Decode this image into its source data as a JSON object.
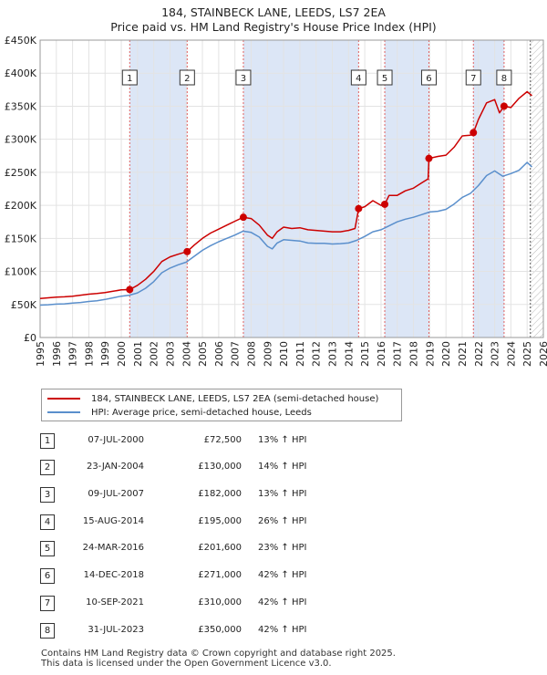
{
  "title_line1": "184, STAINBECK LANE, LEEDS, LS7 2EA",
  "title_line2": "Price paid vs. HM Land Registry's House Price Index (HPI)",
  "colors": {
    "property": "#cc0000",
    "hpi": "#5a8fcc",
    "shade": "#dce6f6",
    "marker_line": "#e06060"
  },
  "legend": {
    "property_label": "184, STAINBECK LANE, LEEDS, LS7 2EA (semi-detached house)",
    "hpi_label": "HPI: Average price, semi-detached house, Leeds"
  },
  "chart_data": {
    "type": "line",
    "title": "184, STAINBECK LANE, LEEDS, LS7 2EA — Price paid vs. HM Land Registry's House Price Index (HPI)",
    "xlim": [
      1995,
      2026
    ],
    "ylim": [
      0,
      450000
    ],
    "y_ticks": [
      0,
      50000,
      100000,
      150000,
      200000,
      250000,
      300000,
      350000,
      400000,
      450000
    ],
    "y_tick_labels": [
      "£0",
      "£50K",
      "£100K",
      "£150K",
      "£200K",
      "£250K",
      "£300K",
      "£350K",
      "£400K",
      "£450K"
    ],
    "x_ticks": [
      1995,
      1996,
      1997,
      1998,
      1999,
      2000,
      2001,
      2002,
      2003,
      2004,
      2005,
      2006,
      2007,
      2008,
      2009,
      2010,
      2011,
      2012,
      2013,
      2014,
      2015,
      2016,
      2017,
      2018,
      2019,
      2020,
      2021,
      2022,
      2023,
      2024,
      2025,
      2026
    ],
    "x_tick_labels": [
      "1995",
      "1996",
      "1997",
      "1998",
      "1999",
      "2000",
      "2001",
      "2002",
      "2003",
      "2004",
      "2005",
      "2006",
      "2007",
      "2008",
      "2009",
      "2010",
      "2011",
      "2012",
      "2013",
      "2014",
      "2015",
      "2016",
      "2017",
      "2018",
      "2019",
      "2020",
      "2021",
      "2022",
      "2023",
      "2024",
      "2025",
      "2026"
    ],
    "shaded_periods": [
      [
        2000.52,
        2004.06
      ],
      [
        2007.52,
        2014.62
      ],
      [
        2016.23,
        2018.95
      ],
      [
        2021.69,
        2023.58
      ]
    ],
    "future_from": 2025.2,
    "series": [
      {
        "name": "184, STAINBECK LANE, LEEDS, LS7 2EA (semi-detached house)",
        "x": [
          1995.0,
          1995.5,
          1996.0,
          1996.5,
          1997.0,
          1997.5,
          1998.0,
          1998.5,
          1999.0,
          1999.5,
          2000.0,
          2000.52,
          2001.0,
          2001.5,
          2002.0,
          2002.5,
          2003.0,
          2003.5,
          2004.06,
          2004.5,
          2005.0,
          2005.5,
          2006.0,
          2006.5,
          2007.0,
          2007.52,
          2008.0,
          2008.5,
          2009.0,
          2009.3,
          2009.6,
          2010.0,
          2010.5,
          2011.0,
          2011.5,
          2012.0,
          2012.5,
          2013.0,
          2013.5,
          2014.0,
          2014.4,
          2014.62,
          2015.0,
          2015.5,
          2016.0,
          2016.23,
          2016.5,
          2017.0,
          2017.5,
          2018.0,
          2018.5,
          2018.9,
          2018.95,
          2019.5,
          2020.0,
          2020.5,
          2021.0,
          2021.5,
          2021.69,
          2022.0,
          2022.5,
          2023.0,
          2023.3,
          2023.58,
          2024.0,
          2024.5,
          2025.0,
          2025.3
        ],
        "values": [
          59000,
          60000,
          61000,
          61500,
          62500,
          64000,
          65500,
          66500,
          68000,
          70000,
          72000,
          72500,
          79000,
          88000,
          100000,
          115000,
          122000,
          126000,
          130000,
          140000,
          150000,
          158000,
          164000,
          170000,
          176000,
          182000,
          180000,
          170000,
          155000,
          150000,
          160000,
          167000,
          165000,
          166000,
          163000,
          162000,
          161000,
          160000,
          160000,
          162000,
          165000,
          195000,
          198000,
          207000,
          200000,
          201600,
          215000,
          215000,
          222000,
          226000,
          234000,
          240000,
          271000,
          274000,
          276000,
          288000,
          305000,
          306000,
          310000,
          330000,
          355000,
          360000,
          340000,
          350000,
          348000,
          362000,
          372000,
          366000
        ]
      },
      {
        "name": "HPI: Average price, semi-detached house, Leeds",
        "x": [
          1995.0,
          1995.5,
          1996.0,
          1996.5,
          1997.0,
          1997.5,
          1998.0,
          1998.5,
          1999.0,
          1999.5,
          2000.0,
          2000.5,
          2001.0,
          2001.5,
          2002.0,
          2002.5,
          2003.0,
          2003.5,
          2004.0,
          2004.5,
          2005.0,
          2005.5,
          2006.0,
          2006.5,
          2007.0,
          2007.5,
          2008.0,
          2008.5,
          2009.0,
          2009.3,
          2009.6,
          2010.0,
          2010.5,
          2011.0,
          2011.5,
          2012.0,
          2012.5,
          2013.0,
          2013.5,
          2014.0,
          2014.5,
          2015.0,
          2015.5,
          2016.0,
          2016.5,
          2017.0,
          2017.5,
          2018.0,
          2018.5,
          2019.0,
          2019.5,
          2020.0,
          2020.5,
          2021.0,
          2021.5,
          2022.0,
          2022.5,
          2023.0,
          2023.5,
          2024.0,
          2024.5,
          2025.0,
          2025.3
        ],
        "values": [
          49000,
          49500,
          50500,
          51000,
          52000,
          53000,
          54500,
          55500,
          57500,
          60000,
          62500,
          64000,
          67500,
          74500,
          84500,
          98000,
          105000,
          110000,
          114000,
          123000,
          132000,
          139000,
          145000,
          150000,
          155000,
          161000,
          159000,
          152000,
          138000,
          134000,
          143000,
          148000,
          147000,
          146000,
          143000,
          142500,
          142500,
          141500,
          142000,
          143000,
          147000,
          153000,
          160000,
          163000,
          169000,
          175000,
          179000,
          182000,
          186000,
          190000,
          191000,
          194000,
          202000,
          212000,
          218000,
          230000,
          245000,
          252000,
          244000,
          248000,
          253000,
          265000,
          258000
        ]
      }
    ],
    "sale_markers": [
      {
        "label": "1",
        "x": 2000.52,
        "value": 72500
      },
      {
        "label": "2",
        "x": 2004.06,
        "value": 130000
      },
      {
        "label": "3",
        "x": 2007.52,
        "value": 182000
      },
      {
        "label": "4",
        "x": 2014.62,
        "value": 195000
      },
      {
        "label": "5",
        "x": 2016.23,
        "value": 201600
      },
      {
        "label": "6",
        "x": 2018.95,
        "value": 271000
      },
      {
        "label": "7",
        "x": 2021.69,
        "value": 310000
      },
      {
        "label": "8",
        "x": 2023.58,
        "value": 350000
      }
    ]
  },
  "sales": [
    {
      "num": "1",
      "date": "07-JUL-2000",
      "price": "£72,500",
      "hpi": "13% ↑ HPI"
    },
    {
      "num": "2",
      "date": "23-JAN-2004",
      "price": "£130,000",
      "hpi": "14% ↑ HPI"
    },
    {
      "num": "3",
      "date": "09-JUL-2007",
      "price": "£182,000",
      "hpi": "13% ↑ HPI"
    },
    {
      "num": "4",
      "date": "15-AUG-2014",
      "price": "£195,000",
      "hpi": "26% ↑ HPI"
    },
    {
      "num": "5",
      "date": "24-MAR-2016",
      "price": "£201,600",
      "hpi": "23% ↑ HPI"
    },
    {
      "num": "6",
      "date": "14-DEC-2018",
      "price": "£271,000",
      "hpi": "42% ↑ HPI"
    },
    {
      "num": "7",
      "date": "10-SEP-2021",
      "price": "£310,000",
      "hpi": "42% ↑ HPI"
    },
    {
      "num": "8",
      "date": "31-JUL-2023",
      "price": "£350,000",
      "hpi": "42% ↑ HPI"
    }
  ],
  "footer": {
    "line1": "Contains HM Land Registry data © Crown copyright and database right 2025.",
    "line2": "This data is licensed under the Open Government Licence v3.0."
  }
}
